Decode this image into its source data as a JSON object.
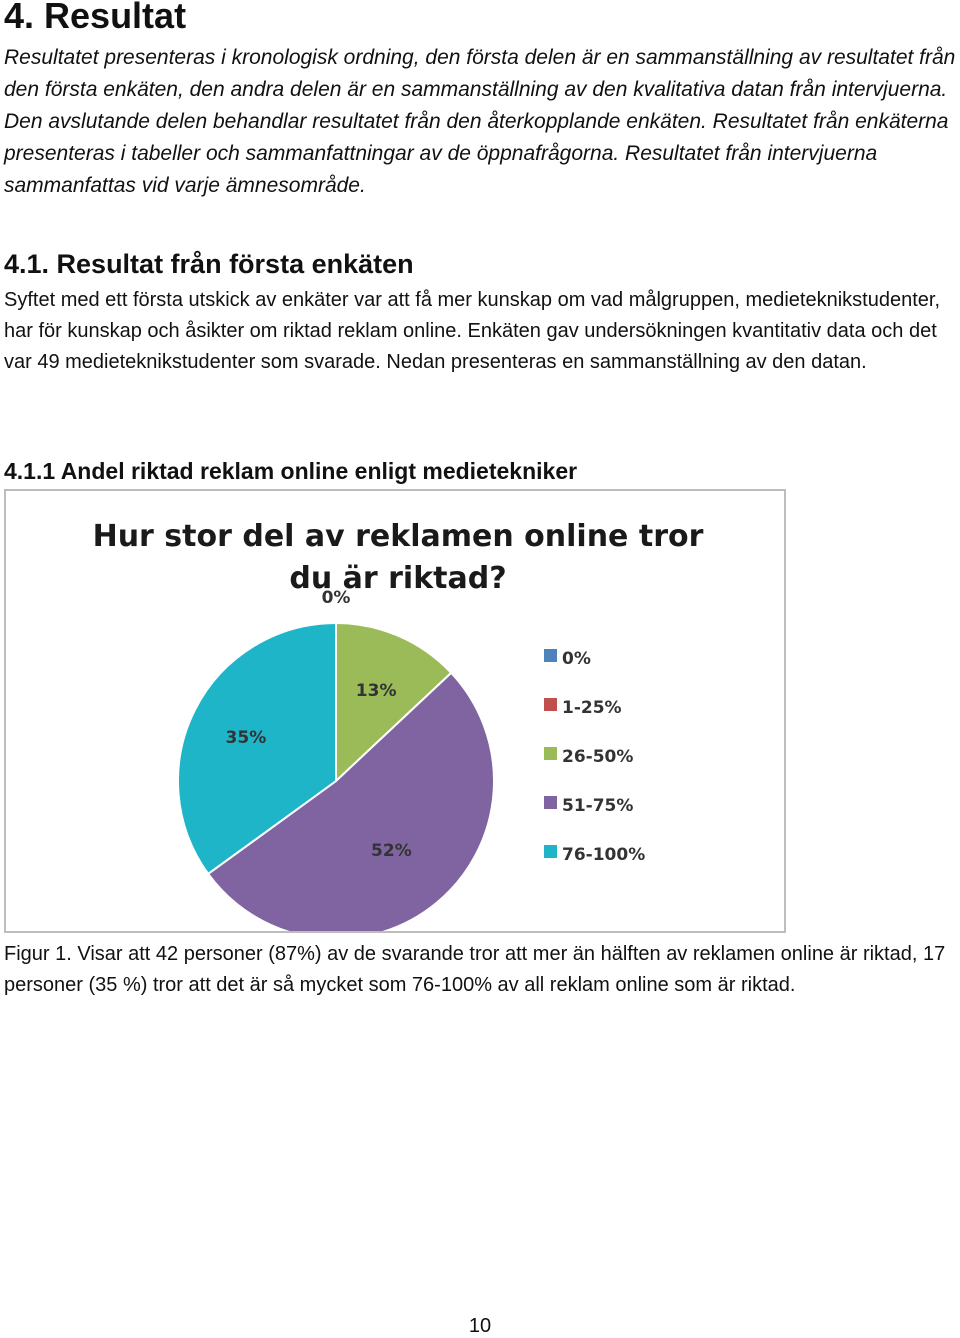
{
  "section": {
    "title": "4. Resultat",
    "intro": "Resultatet presenteras i kronologisk ordning, den första delen är en sammanställning av resultatet från den första enkäten, den andra delen är en sammanställning av den kvalitativa datan från intervjuerna. Den avslutande delen behandlar resultatet från den återkopplande enkäten. Resultatet från enkäterna presenteras i tabeller och sammanfattningar av de öppnafrågorna. Resultatet från intervjuerna sammanfattas vid varje ämnesområde."
  },
  "subsection": {
    "title": "4.1. Resultat från första enkäten",
    "body": "Syftet med ett första utskick av enkäter var att få mer kunskap om vad målgruppen, medieteknikstudenter, har för kunskap och åsikter om riktad reklam online. Enkäten gav undersökningen kvantitativ data och det var 49 medieteknikstudenter som svarade. Nedan presenteras en sammanställning av den datan."
  },
  "figure": {
    "heading": "4.1.1 Andel riktad reklam online enligt medietekniker",
    "caption": "Figur 1. Visar att 42 personer (87%) av de svarande tror att mer än hälften av reklamen online är riktad, 17 personer (35 %) tror att det är så mycket som 76-100% av all reklam online som är riktad."
  },
  "chart_data": {
    "type": "pie",
    "title_line1": "Hur stor del av reklamen online tror",
    "title_line2": "du är riktad?",
    "legend_position": "right",
    "categories": [
      "0%",
      "1-25%",
      "26-50%",
      "51-75%",
      "76-100%"
    ],
    "values": [
      0,
      0,
      13,
      52,
      35
    ],
    "data_labels": [
      "0%",
      "",
      "13%",
      "52%",
      "35%"
    ],
    "colors": [
      "#4f81bd",
      "#c0504d",
      "#9bbb59",
      "#8064a2",
      "#1fb5c9"
    ]
  },
  "page_number": "10"
}
